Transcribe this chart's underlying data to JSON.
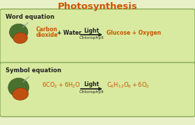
{
  "title": "Photosynthesis",
  "title_color": "#cc5500",
  "background_color": "#e8f0c8",
  "box_color": "#d8eaa0",
  "box_edge_color": "#88aa55",
  "text_black": "#222222",
  "text_orange": "#cc5500",
  "word_eq_label": "Word equation",
  "symbol_eq_label": "Symbol equation",
  "word_light": "Light",
  "word_chlorophyll": "Chlorophyll",
  "word_products": "Glucose + Oxygen",
  "sym_light": "Light",
  "sym_chlorophyll": "Chlorophyll",
  "figsize": [
    2.8,
    1.8
  ],
  "dpi": 100
}
